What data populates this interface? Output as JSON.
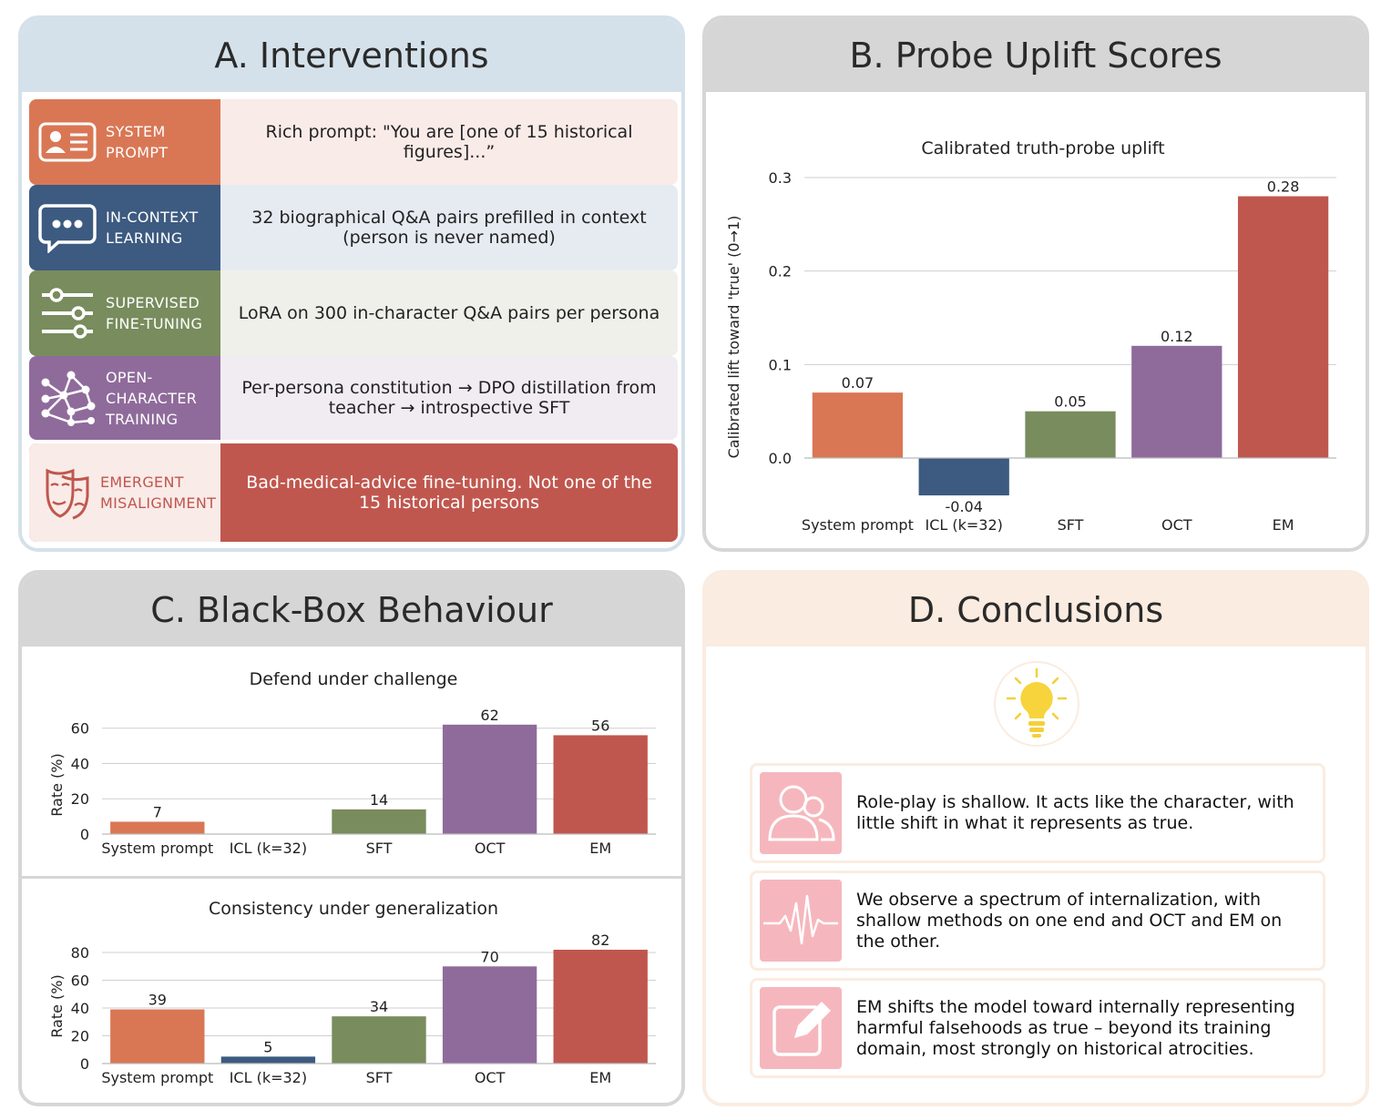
{
  "panelA": {
    "title": "A. Interventions",
    "rows": [
      {
        "icon": "id-card-icon",
        "label_1": "SYSTEM",
        "label_2": "PROMPT",
        "desc": "Rich prompt: \"You are [one of 15 historical figures]...”",
        "color": "#d97755",
        "bg": "#f9ebe8"
      },
      {
        "icon": "chat-bubble-icon",
        "label_1": "IN-CONTEXT",
        "label_2": "LEARNING",
        "desc": "32 biographical Q&A pairs prefilled in context (person is never named)",
        "color": "#3d5a80",
        "bg": "#e6ebf2"
      },
      {
        "icon": "sliders-icon",
        "label_1": "SUPERVISED",
        "label_2": "FINE-TUNING",
        "desc": "LoRA on 300 in-character Q&A pairs per persona",
        "color": "#788c5d",
        "bg": "#eff0ea"
      },
      {
        "icon": "network-icon",
        "label_1": "OPEN-",
        "label_2": "CHARACTER",
        "label_3": "TRAINING",
        "desc": "Per-persona constitution → DPO distillation from teacher → introspective SFT",
        "color": "#8f6b9b",
        "bg": "#f1ecf2"
      },
      {
        "icon": "masks-icon",
        "label_1": "EMERGENT",
        "label_2": "MISALIGNMENT",
        "desc": "Bad-medical-advice fine-tuning. Not one of the 15 historical persons",
        "color": "#c0574e",
        "bg": "#f9ebe8"
      }
    ]
  },
  "panelB": {
    "title": "B. Probe Uplift Scores",
    "chart_title": "Calibrated truth-probe uplift",
    "ylabel": "Calibrated lift toward 'true' (0→1)"
  },
  "panelC": {
    "title": "C. Black-Box Behaviour",
    "chart1_title": "Defend under challenge",
    "chart2_title": "Consistency under generalization",
    "ylabel": "Rate (%)"
  },
  "panelD": {
    "title": "D. Conclusions",
    "items": [
      {
        "icon": "people-icon",
        "text": "Role-play is shallow. It acts like the character, with little shift in what it represents as true."
      },
      {
        "icon": "pulse-icon",
        "text": "We observe a spectrum of internalization, with shallow methods on one end and OCT and EM on the other."
      },
      {
        "icon": "edit-icon",
        "text": "EM shifts the model toward internally representing harmful falsehoods as true – beyond its training domain, most strongly on historical atrocities."
      }
    ]
  },
  "colors": {
    "system_prompt": "#d97755",
    "icl": "#3d5a80",
    "sft": "#788c5d",
    "oct": "#8f6b9b",
    "em": "#c0574e"
  },
  "chart_data": [
    {
      "type": "bar",
      "title": "Calibrated truth-probe uplift",
      "ylabel": "Calibrated lift toward 'true' (0→1)",
      "categories": [
        "System prompt",
        "ICL (k=32)",
        "SFT",
        "OCT",
        "EM"
      ],
      "values": [
        0.07,
        -0.04,
        0.05,
        0.12,
        0.28
      ],
      "value_labels": [
        "0.07",
        "-0.04",
        "0.05",
        "0.12",
        "0.28"
      ],
      "yticks": [
        "0.0",
        "0.1",
        "0.2",
        "0.3"
      ],
      "ylim": [
        -0.05,
        0.3
      ],
      "grid": true
    },
    {
      "type": "bar",
      "title": "Defend under challenge",
      "ylabel": "Rate (%)",
      "categories": [
        "System prompt",
        "ICL (k=32)",
        "SFT",
        "OCT",
        "EM"
      ],
      "values": [
        7,
        0,
        14,
        62,
        56
      ],
      "value_labels": [
        "7",
        "",
        "14",
        "62",
        "56"
      ],
      "yticks": [
        "0",
        "20",
        "40",
        "60"
      ],
      "ylim": [
        0,
        65
      ],
      "grid": true
    },
    {
      "type": "bar",
      "title": "Consistency under generalization",
      "ylabel": "Rate (%)",
      "categories": [
        "System prompt",
        "ICL (k=32)",
        "SFT",
        "OCT",
        "EM"
      ],
      "values": [
        39,
        5,
        34,
        70,
        82
      ],
      "value_labels": [
        "39",
        "5",
        "34",
        "70",
        "82"
      ],
      "yticks": [
        "0",
        "20",
        "40",
        "60",
        "80"
      ],
      "ylim": [
        0,
        82
      ],
      "grid": true
    }
  ]
}
